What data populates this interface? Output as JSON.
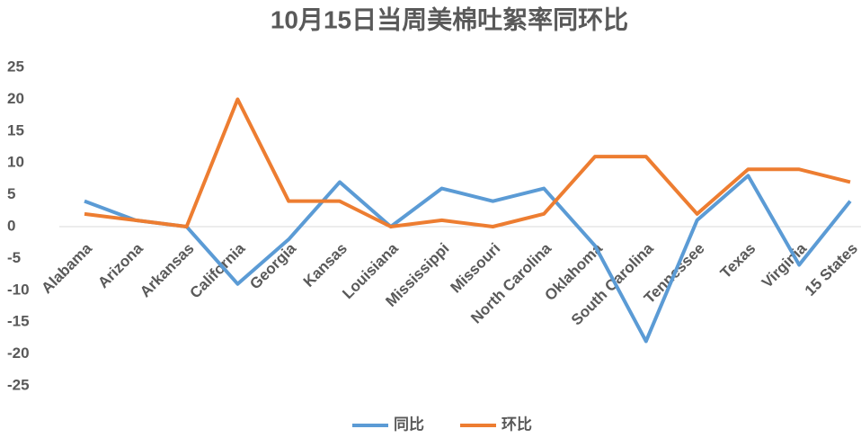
{
  "chart_data": {
    "type": "line",
    "title": "10月15日当周美棉吐絮率同环比",
    "categories": [
      "Alabama",
      "Arizona",
      "Arkansas",
      "California",
      "Georgia",
      "Kansas",
      "Louisiana",
      "Mississippi",
      "Missouri",
      "North Carolina",
      "Oklahoma",
      "South Carolina",
      "Tennessee",
      "Texas",
      "Virginia",
      "15 States"
    ],
    "series": [
      {
        "name": "同比",
        "color": "#5b9bd5",
        "values": [
          4,
          1,
          0,
          -9,
          -2,
          7,
          0,
          6,
          4,
          6,
          -3,
          -18,
          1,
          8,
          -6,
          4
        ]
      },
      {
        "name": "环比",
        "color": "#ed7d31",
        "values": [
          2,
          1,
          0,
          20,
          4,
          4,
          0,
          1,
          0,
          2,
          11,
          11,
          2,
          9,
          9,
          7
        ]
      }
    ],
    "ylim": [
      -25,
      25
    ],
    "yticks": [
      -25,
      -20,
      -15,
      -10,
      -5,
      0,
      5,
      10,
      15,
      20,
      25
    ],
    "legend": "bottom"
  }
}
